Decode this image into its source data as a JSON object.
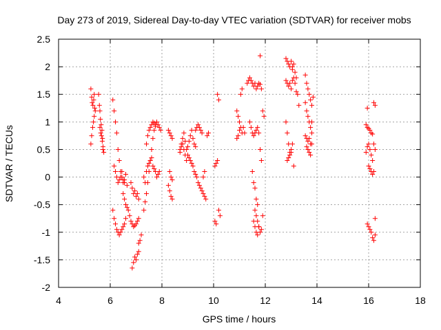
{
  "chart_data": {
    "type": "scatter",
    "title": "Day 273 of 2019, Sidereal Day-to-day VTEC variation (SDTVAR) for receiver mobs",
    "xlabel": "GPS time / hours",
    "ylabel": "SDTVAR / TECUs",
    "xlim": [
      4,
      18
    ],
    "ylim": [
      -2,
      2.5
    ],
    "xticks": [
      4,
      6,
      8,
      10,
      12,
      14,
      16,
      18
    ],
    "yticks": [
      -2,
      -1.5,
      -1,
      -0.5,
      0,
      0.5,
      1,
      1.5,
      2,
      2.5
    ],
    "xtick_labels": [
      "4",
      "6",
      "8",
      "10",
      "12",
      "14",
      "16",
      "18"
    ],
    "ytick_labels": [
      "-2",
      "-1.5",
      "-1",
      "-0.5",
      "0",
      "0.5",
      "1",
      "1.5",
      "2",
      "2.5"
    ],
    "grid": true,
    "marker": "+",
    "color": "#ff0000",
    "series": [
      {
        "name": "SDTVAR",
        "x": [
          5.25,
          5.28,
          5.3,
          5.33,
          5.36,
          5.38,
          5.4,
          5.42,
          5.25,
          5.28,
          5.32,
          5.35,
          5.38,
          5.55,
          5.58,
          5.6,
          5.62,
          5.65,
          5.68,
          5.7,
          5.72,
          5.6,
          5.63,
          5.66,
          5.69,
          5.72,
          5.75,
          6.1,
          6.15,
          6.2,
          6.25,
          6.3,
          6.35,
          6.4,
          6.45,
          6.5,
          6.55,
          6.6,
          6.65,
          6.15,
          6.2,
          6.25,
          6.3,
          6.35,
          6.4,
          6.45,
          6.5,
          6.55,
          6.6,
          6.1,
          6.15,
          6.2,
          6.25,
          6.3,
          6.35,
          6.4,
          6.45,
          6.5,
          6.55,
          6.6,
          6.5,
          6.55,
          6.6,
          6.65,
          6.7,
          6.75,
          6.8,
          6.85,
          6.9,
          6.95,
          7.0,
          7.05,
          7.1,
          6.85,
          6.9,
          6.95,
          7.0,
          7.05,
          7.1,
          7.1,
          7.15,
          7.2,
          6.8,
          6.85,
          6.9,
          6.95,
          7.0,
          7.05,
          7.1,
          7.3,
          7.35,
          7.4,
          7.45,
          7.5,
          7.55,
          7.6,
          7.65,
          7.7,
          7.75,
          7.8,
          7.85,
          7.9,
          7.95,
          7.3,
          7.35,
          7.4,
          7.45,
          7.5,
          7.55,
          7.6,
          7.65,
          7.7,
          7.75,
          7.8,
          7.85,
          7.9,
          7.4,
          7.45,
          7.5,
          7.55,
          7.6,
          7.65,
          7.7,
          7.75,
          8.25,
          8.3,
          8.35,
          8.4,
          8.25,
          8.3,
          8.35,
          8.4,
          8.3,
          8.35,
          8.4,
          8.7,
          8.75,
          8.8,
          8.85,
          8.9,
          8.95,
          9.0,
          9.05,
          9.1,
          9.15,
          9.2,
          9.25,
          9.3,
          8.7,
          8.75,
          8.8,
          8.85,
          8.9,
          8.95,
          9.0,
          9.05,
          9.1,
          9.15,
          9.2,
          9.25,
          9.3,
          9.35,
          9.4,
          9.45,
          9.5,
          9.55,
          9.6,
          9.65,
          9.7,
          9.75,
          9.8,
          9.3,
          9.35,
          9.4,
          9.45,
          9.5,
          9.55,
          9.6,
          9.65,
          10.05,
          10.1,
          10.15,
          10.2,
          10.25,
          10.05,
          10.1,
          10.15,
          10.2,
          10.9,
          10.95,
          11.0,
          11.05,
          11.1,
          11.15,
          11.2,
          10.9,
          10.95,
          11.0,
          11.05,
          11.1,
          11.3,
          11.35,
          11.4,
          11.45,
          11.5,
          11.55,
          11.6,
          11.65,
          11.7,
          11.75,
          11.8,
          11.85,
          11.9,
          11.95,
          11.4,
          11.45,
          11.5,
          11.55,
          11.6,
          11.65,
          11.7,
          11.75,
          11.8,
          11.85,
          11.5,
          11.55,
          11.6,
          11.65,
          11.7,
          11.6,
          11.65,
          11.7,
          11.75,
          11.8,
          11.85,
          11.9,
          11.55,
          11.6,
          11.65,
          11.7,
          11.75,
          11.8,
          12.8,
          12.85,
          12.9,
          12.95,
          13.0,
          13.05,
          13.1,
          13.15,
          13.2,
          12.8,
          12.85,
          12.9,
          12.95,
          13.0,
          13.05,
          13.1,
          13.15,
          13.2,
          13.25,
          13.3,
          12.8,
          12.85,
          12.9,
          12.95,
          13.0,
          13.05,
          13.1,
          12.85,
          12.9,
          12.95,
          13.0,
          13.05,
          13.55,
          13.6,
          13.65,
          13.7,
          13.75,
          13.8,
          13.85,
          13.55,
          13.6,
          13.65,
          13.7,
          13.75,
          13.8,
          13.55,
          13.6,
          13.65,
          13.7,
          13.75,
          13.8,
          13.6,
          13.65,
          13.7,
          13.75,
          13.8,
          15.9,
          15.95,
          16.0,
          16.05,
          16.1,
          16.15,
          16.2,
          16.25,
          15.9,
          15.95,
          16.0,
          16.05,
          16.1,
          16.15,
          16.2,
          16.25,
          15.95,
          16.0,
          16.05,
          16.1,
          16.15,
          16.2,
          16.25,
          15.95,
          16.0,
          16.05,
          16.1,
          16.15,
          16.2,
          16.25
        ],
        "y": [
          1.6,
          1.45,
          1.35,
          1.3,
          1.4,
          1.5,
          1.25,
          1.2,
          0.6,
          0.75,
          0.9,
          1.0,
          1.1,
          1.5,
          1.3,
          1.2,
          1.05,
          0.95,
          0.85,
          0.7,
          0.5,
          0.9,
          0.8,
          0.75,
          0.65,
          0.55,
          0.45,
          1.4,
          1.2,
          1.0,
          0.8,
          0.5,
          0.3,
          0.1,
          0.0,
          -0.1,
          -0.05,
          0.05,
          -0.15,
          0.2,
          0.1,
          0.0,
          -0.1,
          -0.05,
          0.0,
          0.1,
          -0.05,
          -0.1,
          0.05,
          -0.6,
          -0.75,
          -0.85,
          -0.95,
          -1.0,
          -1.05,
          -1.0,
          -0.95,
          -0.9,
          -0.85,
          -0.75,
          -0.3,
          -0.4,
          -0.5,
          -0.55,
          -0.6,
          -0.7,
          -0.8,
          -0.85,
          -0.9,
          -0.88,
          -0.85,
          -0.8,
          -0.75,
          -1.65,
          -1.55,
          -1.45,
          -1.5,
          -1.4,
          -1.35,
          -1.2,
          -1.15,
          -1.05,
          -0.1,
          -0.2,
          -0.3,
          -0.25,
          -0.35,
          -0.3,
          -0.4,
          -0.6,
          -0.45,
          -0.3,
          -0.1,
          0.1,
          0.3,
          0.5,
          0.7,
          0.85,
          0.95,
          1.0,
          0.95,
          0.9,
          0.85,
          0.0,
          -0.1,
          0.1,
          0.2,
          0.25,
          0.3,
          0.35,
          0.2,
          0.15,
          0.1,
          0.0,
          0.05,
          0.1,
          0.6,
          0.75,
          0.85,
          0.9,
          0.95,
          1.0,
          0.98,
          0.92,
          0.85,
          0.8,
          0.75,
          0.7,
          -0.15,
          -0.25,
          -0.35,
          -0.4,
          0.1,
          0.0,
          -0.05,
          0.45,
          0.55,
          0.6,
          0.5,
          0.4,
          0.3,
          0.55,
          0.65,
          0.75,
          0.85,
          0.7,
          0.6,
          0.55,
          0.5,
          0.6,
          0.7,
          0.8,
          0.65,
          0.5,
          0.4,
          0.35,
          0.3,
          0.25,
          0.2,
          0.1,
          0.05,
          0.0,
          -0.1,
          -0.15,
          -0.2,
          -0.25,
          -0.3,
          -0.35,
          -0.4,
          0.75,
          0.8,
          0.85,
          0.9,
          0.95,
          0.9,
          0.85,
          0.8,
          0.0,
          0.1,
          0.2,
          0.25,
          0.3,
          -0.6,
          -0.7,
          -0.8,
          -0.85,
          1.5,
          1.4,
          1.2,
          1.1,
          1.0,
          0.9,
          0.8,
          0.9,
          0.8,
          0.7,
          0.75,
          0.85,
          1.5,
          1.6,
          1.7,
          1.75,
          1.8,
          1.75,
          1.7,
          1.65,
          1.7,
          1.6,
          1.65,
          1.7,
          1.68,
          1.6,
          1.2,
          1.1,
          1.0,
          0.9,
          0.8,
          0.75,
          0.8,
          0.85,
          0.9,
          0.8,
          0.5,
          0.3,
          0.1,
          -0.1,
          -0.2,
          -0.4,
          -0.5,
          -0.6,
          -0.7,
          -0.8,
          -0.9,
          -1.0,
          -0.95,
          -0.7,
          -0.8,
          -0.9,
          -1.0,
          -1.05,
          -0.9,
          2.2,
          2.15,
          2.1,
          2.05,
          2.0,
          2.1,
          1.95,
          2.05,
          1.9,
          1.8,
          1.75,
          1.7,
          1.65,
          1.7,
          1.6,
          1.75,
          1.8,
          1.7,
          1.55,
          1.5,
          1.3,
          1.0,
          0.8,
          0.6,
          0.45,
          0.5,
          0.6,
          0.2,
          0.3,
          0.35,
          0.4,
          0.45,
          2.0,
          1.85,
          1.7,
          1.6,
          1.5,
          1.4,
          1.3,
          1.45,
          1.35,
          1.2,
          1.1,
          1.0,
          0.9,
          0.8,
          0.75,
          0.7,
          0.65,
          0.7,
          0.6,
          0.6,
          0.55,
          0.5,
          0.45,
          0.4,
          1.0,
          0.95,
          0.9,
          0.88,
          0.85,
          0.8,
          0.78,
          0.6,
          0.5,
          0.45,
          0.55,
          0.6,
          0.5,
          0.4,
          0.3,
          1.35,
          1.3,
          1.25,
          0.2,
          0.15,
          0.1,
          0.05,
          0.1,
          -0.75,
          -0.85,
          -0.9,
          -0.95,
          -1.0,
          -1.1,
          -1.15,
          -1.05
        ]
      }
    ]
  }
}
